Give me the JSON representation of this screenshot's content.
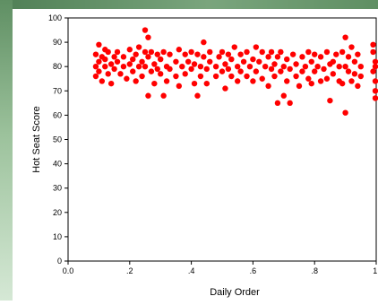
{
  "chart_data": {
    "type": "scatter",
    "title": "",
    "xlabel": "Daily Order",
    "ylabel": "Hot Seat Score",
    "xlim": [
      0.0,
      1.0
    ],
    "ylim": [
      0,
      100
    ],
    "x_ticks": [
      0.0,
      0.2,
      0.4,
      0.6,
      0.8,
      1.0
    ],
    "x_tick_labels": [
      "0.0",
      ".2",
      ".4",
      ".6",
      ".8",
      "1."
    ],
    "y_ticks": [
      0,
      10,
      20,
      30,
      40,
      50,
      60,
      70,
      80,
      90,
      100
    ],
    "y_tick_labels": [
      "0",
      "10",
      "20",
      "30",
      "40",
      "50",
      "60",
      "70",
      "80",
      "90",
      "100"
    ],
    "grid": false,
    "legend": "none",
    "point_color": "#ff0000",
    "points": [
      [
        0.09,
        80
      ],
      [
        0.09,
        76
      ],
      [
        0.09,
        85
      ],
      [
        0.1,
        89
      ],
      [
        0.1,
        82
      ],
      [
        0.1,
        78
      ],
      [
        0.11,
        84
      ],
      [
        0.11,
        74
      ],
      [
        0.12,
        87
      ],
      [
        0.12,
        80
      ],
      [
        0.12,
        83
      ],
      [
        0.13,
        77
      ],
      [
        0.13,
        86
      ],
      [
        0.14,
        81
      ],
      [
        0.14,
        73
      ],
      [
        0.15,
        79
      ],
      [
        0.15,
        84
      ],
      [
        0.16,
        82
      ],
      [
        0.16,
        86
      ],
      [
        0.17,
        77
      ],
      [
        0.18,
        84
      ],
      [
        0.18,
        80
      ],
      [
        0.19,
        75
      ],
      [
        0.2,
        81
      ],
      [
        0.2,
        87
      ],
      [
        0.21,
        83
      ],
      [
        0.21,
        78
      ],
      [
        0.22,
        85
      ],
      [
        0.22,
        74
      ],
      [
        0.23,
        80
      ],
      [
        0.23,
        88
      ],
      [
        0.24,
        82
      ],
      [
        0.24,
        76
      ],
      [
        0.25,
        86
      ],
      [
        0.25,
        80
      ],
      [
        0.25,
        95
      ],
      [
        0.26,
        92
      ],
      [
        0.26,
        84
      ],
      [
        0.26,
        68
      ],
      [
        0.27,
        78
      ],
      [
        0.27,
        86
      ],
      [
        0.28,
        81
      ],
      [
        0.28,
        73
      ],
      [
        0.29,
        85
      ],
      [
        0.29,
        79
      ],
      [
        0.3,
        83
      ],
      [
        0.3,
        77
      ],
      [
        0.31,
        86
      ],
      [
        0.31,
        68
      ],
      [
        0.32,
        80
      ],
      [
        0.32,
        74
      ],
      [
        0.33,
        85
      ],
      [
        0.33,
        79
      ],
      [
        0.35,
        82
      ],
      [
        0.35,
        76
      ],
      [
        0.36,
        87
      ],
      [
        0.36,
        72
      ],
      [
        0.37,
        80
      ],
      [
        0.38,
        85
      ],
      [
        0.38,
        77
      ],
      [
        0.39,
        82
      ],
      [
        0.4,
        79
      ],
      [
        0.4,
        86
      ],
      [
        0.41,
        73
      ],
      [
        0.41,
        81
      ],
      [
        0.42,
        85
      ],
      [
        0.42,
        68
      ],
      [
        0.43,
        80
      ],
      [
        0.43,
        76
      ],
      [
        0.44,
        84
      ],
      [
        0.44,
        90
      ],
      [
        0.45,
        79
      ],
      [
        0.45,
        73
      ],
      [
        0.46,
        82
      ],
      [
        0.46,
        86
      ],
      [
        0.48,
        80
      ],
      [
        0.48,
        76
      ],
      [
        0.49,
        84
      ],
      [
        0.5,
        78
      ],
      [
        0.5,
        86
      ],
      [
        0.51,
        81
      ],
      [
        0.51,
        71
      ],
      [
        0.52,
        85
      ],
      [
        0.52,
        79
      ],
      [
        0.53,
        76
      ],
      [
        0.53,
        83
      ],
      [
        0.54,
        88
      ],
      [
        0.55,
        80
      ],
      [
        0.55,
        74
      ],
      [
        0.56,
        85
      ],
      [
        0.56,
        78
      ],
      [
        0.57,
        82
      ],
      [
        0.58,
        76
      ],
      [
        0.58,
        86
      ],
      [
        0.59,
        80
      ],
      [
        0.6,
        74
      ],
      [
        0.6,
        83
      ],
      [
        0.61,
        88
      ],
      [
        0.61,
        78
      ],
      [
        0.62,
        82
      ],
      [
        0.63,
        75
      ],
      [
        0.63,
        86
      ],
      [
        0.64,
        80
      ],
      [
        0.65,
        84
      ],
      [
        0.65,
        72
      ],
      [
        0.66,
        79
      ],
      [
        0.66,
        86
      ],
      [
        0.67,
        81
      ],
      [
        0.67,
        76
      ],
      [
        0.68,
        84
      ],
      [
        0.68,
        65
      ],
      [
        0.69,
        78
      ],
      [
        0.69,
        86
      ],
      [
        0.7,
        80
      ],
      [
        0.7,
        68
      ],
      [
        0.71,
        74
      ],
      [
        0.71,
        83
      ],
      [
        0.72,
        79
      ],
      [
        0.72,
        65
      ],
      [
        0.73,
        85
      ],
      [
        0.74,
        76
      ],
      [
        0.74,
        81
      ],
      [
        0.75,
        72
      ],
      [
        0.76,
        84
      ],
      [
        0.76,
        78
      ],
      [
        0.77,
        80
      ],
      [
        0.78,
        75
      ],
      [
        0.78,
        86
      ],
      [
        0.79,
        82
      ],
      [
        0.79,
        73
      ],
      [
        0.8,
        78
      ],
      [
        0.8,
        85
      ],
      [
        0.81,
        80
      ],
      [
        0.82,
        74
      ],
      [
        0.82,
        84
      ],
      [
        0.83,
        79
      ],
      [
        0.84,
        86
      ],
      [
        0.84,
        75
      ],
      [
        0.85,
        81
      ],
      [
        0.85,
        66
      ],
      [
        0.86,
        82
      ],
      [
        0.86,
        77
      ],
      [
        0.87,
        85
      ],
      [
        0.88,
        74
      ],
      [
        0.88,
        80
      ],
      [
        0.89,
        86
      ],
      [
        0.89,
        73
      ],
      [
        0.9,
        80
      ],
      [
        0.9,
        61
      ],
      [
        0.9,
        92
      ],
      [
        0.91,
        84
      ],
      [
        0.91,
        78
      ],
      [
        0.92,
        88
      ],
      [
        0.92,
        74
      ],
      [
        0.93,
        82
      ],
      [
        0.93,
        77
      ],
      [
        0.94,
        85
      ],
      [
        0.94,
        72
      ],
      [
        0.95,
        80
      ],
      [
        0.95,
        76
      ],
      [
        0.99,
        86
      ],
      [
        0.99,
        78
      ],
      [
        1.0,
        70
      ],
      [
        1.0,
        82
      ],
      [
        1.0,
        74
      ],
      [
        1.0,
        67
      ],
      [
        0.99,
        89
      ],
      [
        1.0,
        80
      ]
    ]
  }
}
